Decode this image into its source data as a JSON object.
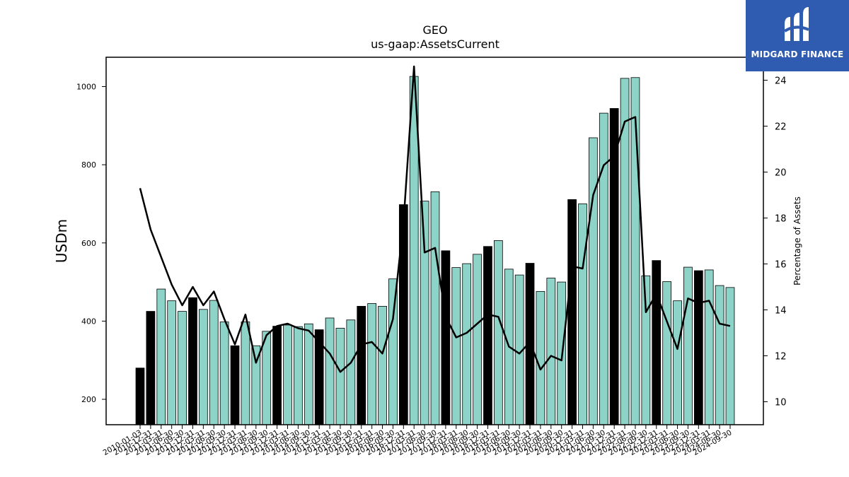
{
  "chart_data": {
    "type": "bar",
    "title": "GEO",
    "subtitle": "us-gaap:AssetsCurrent",
    "ylabel": "USDm",
    "y2label": "Percentage of Assets",
    "ylim": [
      135,
      1075
    ],
    "y2lim": [
      9.0,
      25.0
    ],
    "yticks": [
      200,
      400,
      600,
      800,
      1000
    ],
    "y2ticks": [
      10,
      12,
      14,
      16,
      18,
      20,
      22,
      24
    ],
    "grid": false,
    "colors": {
      "bar_q4": "#000000",
      "bar_other": "#8dd3c7",
      "line": "#000000"
    },
    "categories": [
      "2010-01-03",
      "2010-12-31",
      "2011-03-31",
      "2011-06-30",
      "2011-09-30",
      "2011-12-31",
      "2012-03-31",
      "2012-06-30",
      "2012-09-30",
      "2012-12-31",
      "2013-03-31",
      "2013-06-30",
      "2013-09-30",
      "2013-12-31",
      "2014-03-31",
      "2014-06-30",
      "2014-09-30",
      "2014-12-31",
      "2015-03-31",
      "2015-06-30",
      "2015-09-30",
      "2015-12-31",
      "2016-03-31",
      "2016-06-30",
      "2016-09-30",
      "2016-12-31",
      "2017-03-31",
      "2017-06-30",
      "2017-09-30",
      "2017-12-31",
      "2018-03-31",
      "2018-06-30",
      "2018-09-30",
      "2018-12-31",
      "2019-03-31",
      "2019-06-30",
      "2019-09-30",
      "2019-12-31",
      "2020-03-31",
      "2020-06-30",
      "2020-09-30",
      "2020-12-31",
      "2021-03-31",
      "2021-06-30",
      "2021-09-30",
      "2021-12-31",
      "2022-03-31",
      "2022-06-30",
      "2022-09-30",
      "2022-12-31",
      "2023-03-31",
      "2023-06-30",
      "2023-09-30",
      "2023-12-31",
      "2024-03-31",
      "2024-06-30",
      "2024-09-30"
    ],
    "tick_labels": [
      "2010-01-03",
      "2010-12-31",
      "2011-03-31",
      "2011-06-30",
      "2011-09-30",
      "2011-12-31",
      "2012-03-31",
      "2012-06-30",
      "2012-09-30",
      "2012-12-31",
      "2013-03-31",
      "2013-06-30",
      "2013-09-30",
      "2013-12-31",
      "2014-03-31",
      "2014-06-30",
      "2014-09-30",
      "2014-12-31",
      "2015-03-31",
      "2015-06-30",
      "2015-09-30",
      "2015-12-31",
      "2016-03-31",
      "2016-06-30",
      "2016-09-30",
      "2016-12-31",
      "2017-03-31",
      "2017-06-30",
      "2017-09-30",
      "2017-12-31",
      "2018-03-31",
      "2018-06-30",
      "2018-09-30",
      "2018-12-31",
      "2019-03-31",
      "2019-06-30",
      "2019-09-30",
      "2019-12-31",
      "2020-03-31",
      "2020-06-30",
      "2020-09-30",
      "2020-12-31",
      "2021-03-31",
      "2021-06-30",
      "2021-09-30",
      "2021-12-31",
      "2022-03-31",
      "2022-06-30",
      "2022-09-30",
      "2022-12-31",
      "2023-03-31",
      "2023-06-30",
      "2023-09-30",
      "2023-12-31",
      "2024-03-31",
      "2024-06-30",
      "2024-09-30"
    ],
    "series": [
      {
        "axis": "left",
        "type": "bar",
        "values": [
          280,
          425,
          482,
          452,
          425,
          460,
          430,
          453,
          398,
          337,
          398,
          337,
          374,
          387,
          390,
          386,
          393,
          378,
          408,
          382,
          403,
          438,
          445,
          438,
          508,
          698,
          1026,
          707,
          731,
          580,
          537,
          547,
          571,
          591,
          606,
          533,
          518,
          548,
          476,
          510,
          500,
          711,
          700,
          869,
          932,
          944,
          1021,
          1023,
          516,
          555,
          501,
          452,
          538,
          529,
          531,
          491,
          486
        ],
        "q4": [
          true,
          true,
          false,
          false,
          false,
          true,
          false,
          false,
          false,
          true,
          false,
          false,
          false,
          true,
          false,
          false,
          false,
          true,
          false,
          false,
          false,
          true,
          false,
          false,
          false,
          true,
          false,
          false,
          false,
          true,
          false,
          false,
          false,
          true,
          false,
          false,
          false,
          true,
          false,
          false,
          false,
          true,
          false,
          false,
          false,
          true,
          false,
          false,
          false,
          true,
          false,
          false,
          false,
          true,
          false,
          false,
          false
        ]
      },
      {
        "axis": "right",
        "type": "line",
        "values": [
          19.3,
          17.5,
          16.3,
          15.1,
          14.2,
          15.0,
          14.2,
          14.8,
          13.6,
          12.5,
          13.8,
          11.7,
          12.9,
          13.3,
          13.4,
          13.2,
          13.1,
          12.6,
          12.1,
          11.3,
          11.7,
          12.5,
          12.6,
          12.1,
          13.6,
          17.8,
          24.6,
          16.5,
          16.7,
          13.7,
          12.8,
          13.0,
          13.4,
          13.8,
          13.7,
          12.4,
          12.1,
          12.6,
          11.4,
          12.0,
          11.8,
          15.9,
          15.8,
          19.0,
          20.3,
          20.7,
          22.2,
          22.4,
          13.9,
          14.7,
          13.5,
          12.3,
          14.5,
          14.3,
          14.4,
          13.4,
          13.3
        ]
      }
    ]
  },
  "logo": {
    "text": "MIDGARD FINANCE"
  }
}
